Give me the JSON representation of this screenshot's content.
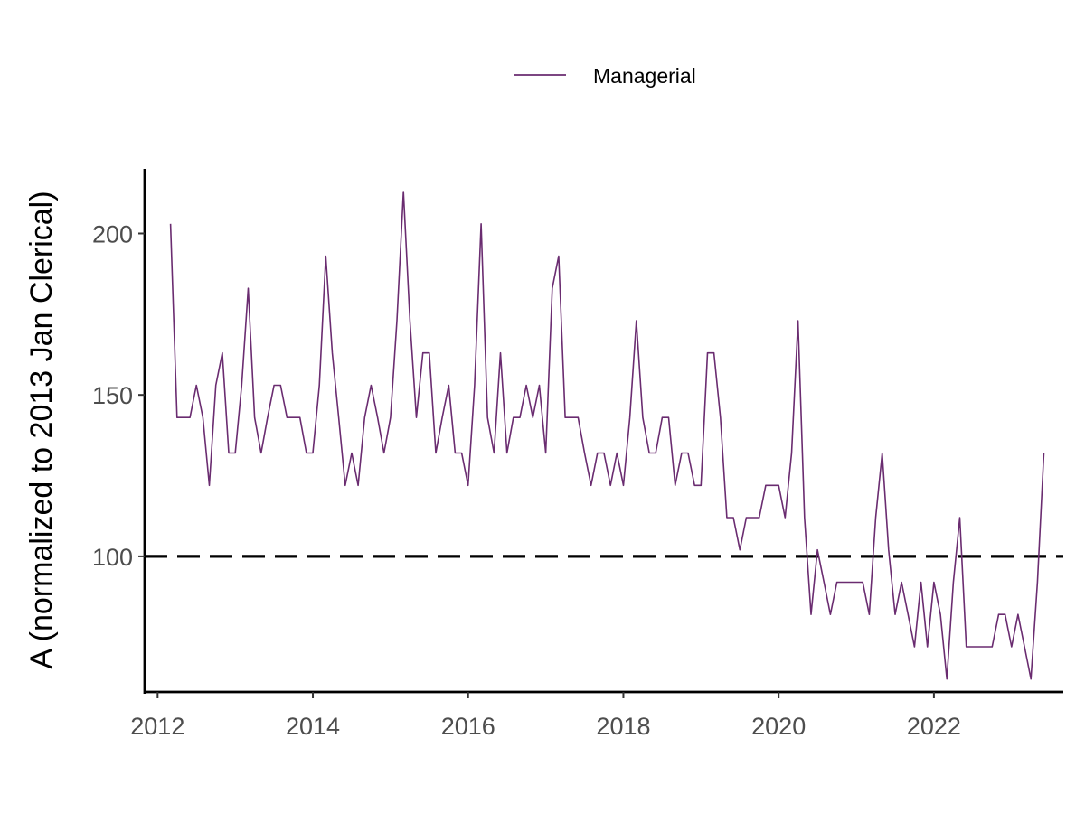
{
  "chart_data": {
    "type": "line",
    "title": "",
    "xlabel": "",
    "ylabel": "A (normalized to 2013 Jan Clerical)",
    "xlim": [
      "2011-11-01",
      "2023-09-01"
    ],
    "ylim": [
      58,
      220
    ],
    "x_ticks": [
      "2012",
      "2014",
      "2016",
      "2018",
      "2020",
      "2022"
    ],
    "y_ticks": [
      "100",
      "150",
      "200"
    ],
    "grid": false,
    "legend_position": "top",
    "series": [
      {
        "name": "Managerial",
        "color": "#6a2c70",
        "points": [
          [
            "2012-03",
            203
          ],
          [
            "2012-04",
            143
          ],
          [
            "2012-05",
            143
          ],
          [
            "2012-06",
            143
          ],
          [
            "2012-07",
            153
          ],
          [
            "2012-08",
            143
          ],
          [
            "2012-09",
            122
          ],
          [
            "2012-10",
            153
          ],
          [
            "2012-11",
            163
          ],
          [
            "2012-12",
            132
          ],
          [
            "2013-01",
            132
          ],
          [
            "2013-02",
            153
          ],
          [
            "2013-03",
            183
          ],
          [
            "2013-04",
            143
          ],
          [
            "2013-05",
            132
          ],
          [
            "2013-06",
            143
          ],
          [
            "2013-07",
            153
          ],
          [
            "2013-08",
            153
          ],
          [
            "2013-09",
            143
          ],
          [
            "2013-10",
            143
          ],
          [
            "2013-11",
            143
          ],
          [
            "2013-12",
            132
          ],
          [
            "2014-01",
            132
          ],
          [
            "2014-02",
            153
          ],
          [
            "2014-03",
            193
          ],
          [
            "2014-04",
            163
          ],
          [
            "2014-05",
            143
          ],
          [
            "2014-06",
            122
          ],
          [
            "2014-07",
            132
          ],
          [
            "2014-08",
            122
          ],
          [
            "2014-09",
            143
          ],
          [
            "2014-10",
            153
          ],
          [
            "2014-11",
            143
          ],
          [
            "2014-12",
            132
          ],
          [
            "2015-01",
            143
          ],
          [
            "2015-02",
            173
          ],
          [
            "2015-03",
            213
          ],
          [
            "2015-04",
            173
          ],
          [
            "2015-05",
            143
          ],
          [
            "2015-06",
            163
          ],
          [
            "2015-07",
            163
          ],
          [
            "2015-08",
            132
          ],
          [
            "2015-09",
            143
          ],
          [
            "2015-10",
            153
          ],
          [
            "2015-11",
            132
          ],
          [
            "2015-12",
            132
          ],
          [
            "2016-01",
            122
          ],
          [
            "2016-02",
            153
          ],
          [
            "2016-03",
            203
          ],
          [
            "2016-04",
            143
          ],
          [
            "2016-05",
            132
          ],
          [
            "2016-06",
            163
          ],
          [
            "2016-07",
            132
          ],
          [
            "2016-08",
            143
          ],
          [
            "2016-09",
            143
          ],
          [
            "2016-10",
            153
          ],
          [
            "2016-11",
            143
          ],
          [
            "2016-12",
            153
          ],
          [
            "2017-01",
            132
          ],
          [
            "2017-02",
            183
          ],
          [
            "2017-03",
            193
          ],
          [
            "2017-04",
            143
          ],
          [
            "2017-05",
            143
          ],
          [
            "2017-06",
            143
          ],
          [
            "2017-07",
            132
          ],
          [
            "2017-08",
            122
          ],
          [
            "2017-09",
            132
          ],
          [
            "2017-10",
            132
          ],
          [
            "2017-11",
            122
          ],
          [
            "2017-12",
            132
          ],
          [
            "2018-01",
            122
          ],
          [
            "2018-02",
            143
          ],
          [
            "2018-03",
            173
          ],
          [
            "2018-04",
            143
          ],
          [
            "2018-05",
            132
          ],
          [
            "2018-06",
            132
          ],
          [
            "2018-07",
            143
          ],
          [
            "2018-08",
            143
          ],
          [
            "2018-09",
            122
          ],
          [
            "2018-10",
            132
          ],
          [
            "2018-11",
            132
          ],
          [
            "2018-12",
            122
          ],
          [
            "2019-01",
            122
          ],
          [
            "2019-02",
            163
          ],
          [
            "2019-03",
            163
          ],
          [
            "2019-04",
            143
          ],
          [
            "2019-05",
            112
          ],
          [
            "2019-06",
            112
          ],
          [
            "2019-07",
            102
          ],
          [
            "2019-08",
            112
          ],
          [
            "2019-09",
            112
          ],
          [
            "2019-10",
            112
          ],
          [
            "2019-11",
            122
          ],
          [
            "2019-12",
            122
          ],
          [
            "2020-01",
            122
          ],
          [
            "2020-02",
            112
          ],
          [
            "2020-03",
            132
          ],
          [
            "2020-04",
            173
          ],
          [
            "2020-05",
            112
          ],
          [
            "2020-06",
            82
          ],
          [
            "2020-07",
            102
          ],
          [
            "2020-08",
            92
          ],
          [
            "2020-09",
            82
          ],
          [
            "2020-10",
            92
          ],
          [
            "2020-11",
            92
          ],
          [
            "2020-12",
            92
          ],
          [
            "2021-01",
            92
          ],
          [
            "2021-02",
            92
          ],
          [
            "2021-03",
            82
          ],
          [
            "2021-04",
            112
          ],
          [
            "2021-05",
            132
          ],
          [
            "2021-06",
            102
          ],
          [
            "2021-07",
            82
          ],
          [
            "2021-08",
            92
          ],
          [
            "2021-09",
            82
          ],
          [
            "2021-10",
            72
          ],
          [
            "2021-11",
            92
          ],
          [
            "2021-12",
            72
          ],
          [
            "2022-01",
            92
          ],
          [
            "2022-02",
            82
          ],
          [
            "2022-03",
            62
          ],
          [
            "2022-04",
            92
          ],
          [
            "2022-05",
            112
          ],
          [
            "2022-06",
            72
          ],
          [
            "2022-07",
            72
          ],
          [
            "2022-08",
            72
          ],
          [
            "2022-09",
            72
          ],
          [
            "2022-10",
            72
          ],
          [
            "2022-11",
            82
          ],
          [
            "2022-12",
            82
          ],
          [
            "2023-01",
            72
          ],
          [
            "2023-02",
            82
          ],
          [
            "2023-03",
            72
          ],
          [
            "2023-04",
            62
          ],
          [
            "2023-05",
            92
          ],
          [
            "2023-06",
            132
          ]
        ]
      }
    ],
    "reference_line": {
      "y": 100,
      "style": "dashed",
      "color": "#000000"
    }
  }
}
